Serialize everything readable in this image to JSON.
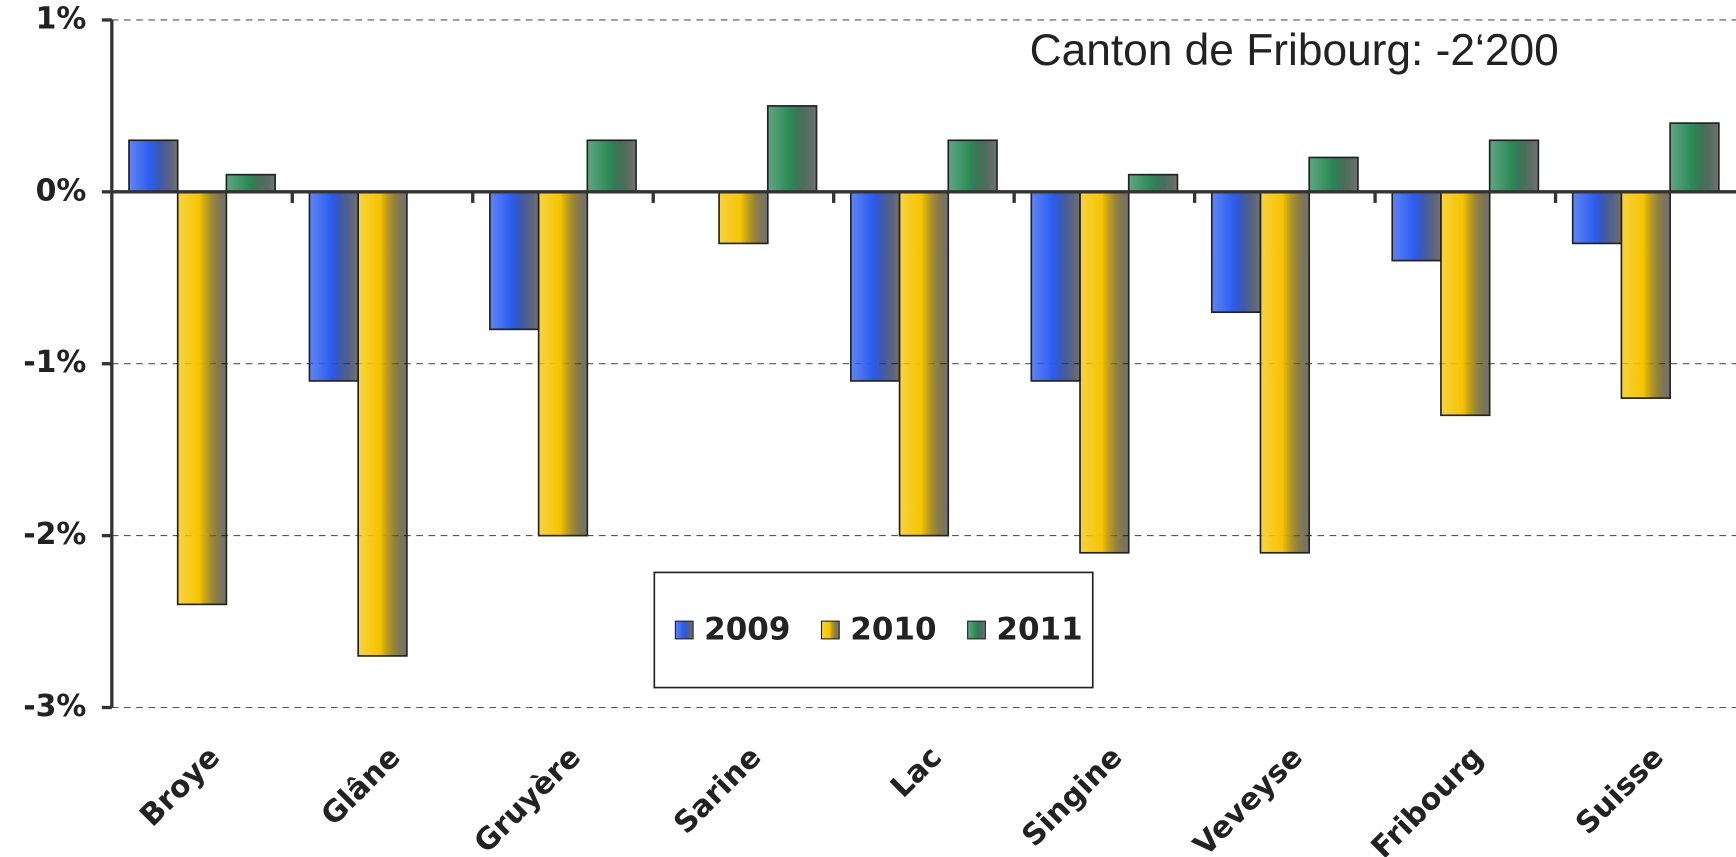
{
  "chart_data": {
    "type": "bar",
    "annotation": "Canton de Fribourg: -2‘200",
    "categories": [
      "Broye",
      "Glâne",
      "Gruyère",
      "Sarine",
      "Lac",
      "Singine",
      "Veveyse",
      "Fribourg",
      "Suisse"
    ],
    "series": [
      {
        "name": "2009",
        "color": "#2a5cf0",
        "values": [
          0.3,
          -1.1,
          -0.8,
          0,
          -1.1,
          -1.1,
          -0.7,
          -0.4,
          -0.3
        ]
      },
      {
        "name": "2010",
        "color": "#f5c400",
        "values": [
          -2.4,
          -2.7,
          -2.0,
          -0.3,
          -2.0,
          -2.1,
          -2.1,
          -1.3,
          -1.2
        ]
      },
      {
        "name": "2011",
        "color": "#2a8a57",
        "values": [
          0.1,
          0,
          0.3,
          0.5,
          0.3,
          0.1,
          0.2,
          0.3,
          0.4
        ]
      }
    ],
    "ylim": [
      -3,
      1
    ],
    "yticks": [
      {
        "value": -3,
        "label": "-3%"
      },
      {
        "value": -2,
        "label": "-2%"
      },
      {
        "value": -1,
        "label": "-1%"
      },
      {
        "value": 0,
        "label": "0%"
      },
      {
        "value": 1,
        "label": "1%"
      }
    ],
    "grid": true,
    "legend": "bottom"
  }
}
